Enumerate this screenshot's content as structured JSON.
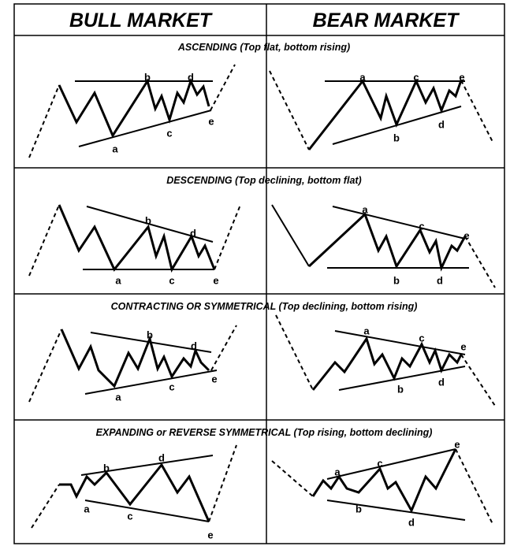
{
  "header": {
    "columns": [
      "BULL MARKET",
      "BEAR MARKET"
    ]
  },
  "sections": [
    {
      "title": "ASCENDING (Top flat, bottom rising)",
      "bull": {
        "labels": [
          "a",
          "b",
          "c",
          "d",
          "e"
        ]
      },
      "bear": {
        "labels": [
          "a",
          "b",
          "c",
          "d",
          "e"
        ]
      }
    },
    {
      "title": "DESCENDING (Top declining, bottom flat)",
      "bull": {
        "labels": [
          "a",
          "b",
          "c",
          "d",
          "e"
        ]
      },
      "bear": {
        "labels": [
          "a",
          "b",
          "c",
          "d",
          "e"
        ]
      }
    },
    {
      "title": "CONTRACTING OR SYMMETRICAL (Top declining, bottom rising)",
      "bull": {
        "labels": [
          "a",
          "b",
          "c",
          "d",
          "e"
        ]
      },
      "bear": {
        "labels": [
          "a",
          "b",
          "c",
          "d",
          "e"
        ]
      }
    },
    {
      "title": "EXPANDING or REVERSE SYMMETRICAL (Top rising, bottom declining)",
      "bull": {
        "labels": [
          "a",
          "b",
          "c",
          "d",
          "e"
        ]
      },
      "bear": {
        "labels": [
          "a",
          "b",
          "c",
          "d",
          "e"
        ]
      }
    }
  ]
}
